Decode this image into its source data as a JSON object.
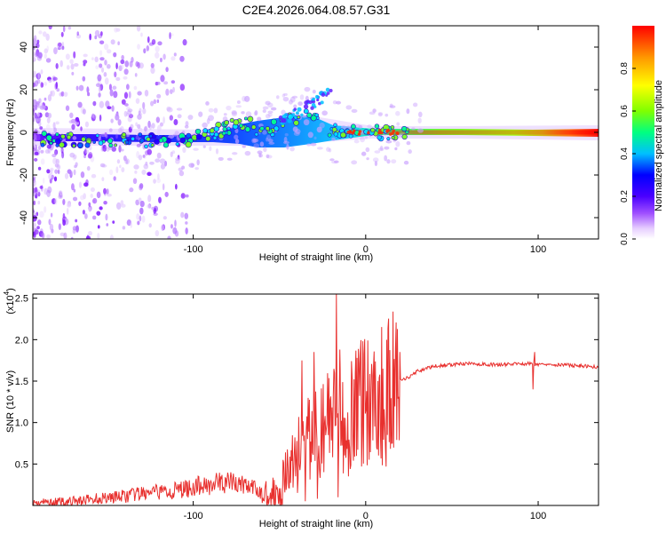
{
  "figure": {
    "title": "C2E4.2026.064.08.57.G31"
  },
  "chart_data": [
    {
      "type": "heatmap",
      "title": "C2E4.2026.064.08.57.G31",
      "xlabel": "Height of straight line (km)",
      "ylabel": "Frequency (Hz)",
      "xlim": [
        -193,
        135
      ],
      "ylim": [
        -50,
        50
      ],
      "xticks": [
        -100,
        0,
        100
      ],
      "yticks": [
        -40,
        -20,
        0,
        20,
        40
      ],
      "colorbar": {
        "label": "Normalized spectral amplitude",
        "range": [
          0,
          1
        ],
        "ticks": [
          0.0,
          0.2,
          0.4,
          0.6,
          0.8
        ],
        "tick_labels": [
          "0.0",
          "0.2",
          "0.4",
          "0.6",
          "0.8"
        ],
        "colors": [
          "#ffffff",
          "#cc99ff",
          "#7a00ff",
          "#0000ff",
          "#00c8ff",
          "#00ff80",
          "#80ff00",
          "#ffff00",
          "#ff9900",
          "#ff0000"
        ]
      },
      "ridge": [
        {
          "x": -190,
          "freq": -3,
          "amp": 0.3
        },
        {
          "x": -160,
          "freq": -4,
          "amp": 0.35
        },
        {
          "x": -130,
          "freq": -4,
          "amp": 0.4
        },
        {
          "x": -100,
          "freq": -3,
          "amp": 0.45
        },
        {
          "x": -80,
          "freq": 2,
          "amp": 0.55
        },
        {
          "x": -70,
          "freq": 5,
          "amp": 0.5
        },
        {
          "x": -60,
          "freq": 0,
          "amp": 0.5
        },
        {
          "x": -45,
          "freq": 5,
          "amp": 0.5
        },
        {
          "x": -35,
          "freq": 10,
          "amp": 0.45
        },
        {
          "x": -20,
          "freq": 1,
          "amp": 0.65
        },
        {
          "x": 0,
          "freq": 0,
          "amp": 0.85
        },
        {
          "x": 40,
          "freq": 0,
          "amp": 0.8
        },
        {
          "x": 100,
          "freq": -1,
          "amp": 0.75
        },
        {
          "x": 133,
          "freq": -2,
          "amp": 0.95
        }
      ]
    },
    {
      "type": "line",
      "xlabel": "Height of straight line (km)",
      "ylabel": "SNR (10 * v/v)",
      "scale_label": "(x10",
      "scale_exp": "4",
      "scale_close": ")",
      "xlim": [
        -193,
        135
      ],
      "ylim": [
        0,
        2.55
      ],
      "xticks": [
        -100,
        0,
        100
      ],
      "yticks": [
        0.5,
        1.0,
        1.5,
        2.0,
        2.5
      ],
      "ytick_labels": [
        "0.5",
        "1.0",
        "1.5",
        "2.0",
        "2.5"
      ],
      "color": "#e8302e",
      "series": [
        {
          "name": "SNR",
          "x": [
            -193,
            -180,
            -170,
            -160,
            -150,
            -140,
            -130,
            -120,
            -110,
            -100,
            -90,
            -80,
            -70,
            -60,
            -55,
            -50,
            -45,
            -40,
            -35,
            -30,
            -25,
            -22,
            -20,
            -17,
            -15,
            -12,
            -10,
            -5,
            0,
            5,
            10,
            15,
            20,
            25,
            30,
            40,
            50,
            60,
            70,
            80,
            90,
            95,
            100,
            105,
            110,
            120,
            135
          ],
          "y": [
            0.03,
            0.04,
            0.05,
            0.07,
            0.1,
            0.11,
            0.14,
            0.16,
            0.18,
            0.22,
            0.26,
            0.28,
            0.25,
            0.15,
            0.12,
            0.2,
            0.4,
            0.6,
            0.75,
            0.85,
            0.9,
            1.0,
            1.1,
            0.95,
            1.0,
            1.1,
            1.2,
            1.25,
            1.3,
            1.35,
            1.3,
            1.4,
            1.5,
            1.55,
            1.62,
            1.68,
            1.7,
            1.71,
            1.7,
            1.7,
            1.71,
            1.71,
            1.7,
            1.71,
            1.7,
            1.69,
            1.67
          ]
        }
      ],
      "spikes": [
        {
          "x": -37,
          "y": 1.75
        },
        {
          "x": -35,
          "y": 0.05
        },
        {
          "x": -30,
          "y": 1.85
        },
        {
          "x": -28,
          "y": 0.08
        },
        {
          "x": -17,
          "y": 2.55
        },
        {
          "x": -16,
          "y": 0.1
        },
        {
          "x": -15,
          "y": 1.88
        },
        {
          "x": -10,
          "y": 0.35
        },
        {
          "x": -5,
          "y": 1.78
        },
        {
          "x": 10,
          "y": 1.65
        },
        {
          "x": 15,
          "y": 0.75
        },
        {
          "x": 98,
          "y": 1.85
        },
        {
          "x": 97,
          "y": 1.4
        }
      ]
    }
  ]
}
